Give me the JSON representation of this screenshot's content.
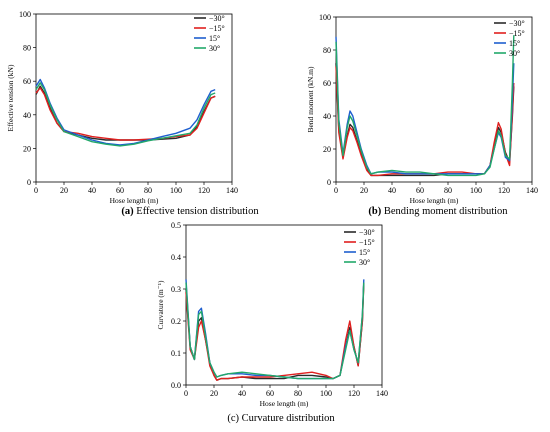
{
  "colors": {
    "neg30": "#2b2b2b",
    "neg15": "#e0201f",
    "pos15": "#1f5fcf",
    "pos30": "#22a86a"
  },
  "chart_data": [
    {
      "type": "line",
      "caption_prefix": "(a)",
      "caption_text": " Effective tension distribution",
      "xlabel": "Hose length (m)",
      "ylabel": "Effective tension (kN)",
      "xlim": [
        0,
        140
      ],
      "ylim": [
        0,
        100
      ],
      "xticks": [
        0,
        20,
        40,
        60,
        80,
        100,
        120,
        140
      ],
      "yticks": [
        0,
        20,
        40,
        60,
        80,
        100
      ],
      "legend_position": "top-right",
      "series": [
        {
          "name": "−30°",
          "color_key": "neg30",
          "x": [
            0,
            3,
            6,
            10,
            15,
            20,
            30,
            40,
            50,
            60,
            70,
            80,
            90,
            100,
            110,
            115,
            120,
            125,
            128
          ],
          "y": [
            52,
            57,
            53,
            44,
            35,
            30,
            28,
            26,
            25,
            25,
            25,
            25,
            25.5,
            26,
            28,
            33,
            42,
            50,
            51
          ]
        },
        {
          "name": "−15°",
          "color_key": "neg15",
          "x": [
            0,
            3,
            6,
            10,
            15,
            20,
            30,
            40,
            50,
            60,
            70,
            80,
            90,
            100,
            110,
            115,
            120,
            125,
            128
          ],
          "y": [
            53,
            56,
            52,
            43,
            35,
            30,
            29,
            27,
            26,
            25,
            25,
            25.5,
            26,
            27,
            28,
            32,
            41,
            50,
            51
          ]
        },
        {
          "name": "15°",
          "color_key": "pos15",
          "x": [
            0,
            3,
            6,
            10,
            15,
            20,
            30,
            40,
            50,
            60,
            70,
            80,
            90,
            100,
            110,
            115,
            120,
            125,
            128
          ],
          "y": [
            57,
            61,
            56,
            47,
            38,
            31,
            28,
            25,
            23,
            22,
            23,
            25,
            27,
            29,
            32,
            37,
            46,
            54,
            55
          ]
        },
        {
          "name": "30°",
          "color_key": "pos30",
          "x": [
            0,
            3,
            6,
            10,
            15,
            20,
            30,
            40,
            50,
            60,
            70,
            80,
            90,
            100,
            110,
            115,
            120,
            125,
            128
          ],
          "y": [
            55,
            59,
            55,
            46,
            37,
            30,
            27,
            24,
            22.5,
            21.5,
            22.5,
            24.5,
            26,
            27.5,
            29,
            34,
            44,
            52,
            53
          ]
        }
      ]
    },
    {
      "type": "line",
      "caption_prefix": "(b)",
      "caption_text": " Bending moment distribution",
      "xlabel": "Hose length (m)",
      "ylabel": "Bend moment (kN.m)",
      "xlim": [
        0,
        140
      ],
      "ylim": [
        0,
        100
      ],
      "xticks": [
        0,
        20,
        40,
        60,
        80,
        100,
        120,
        140
      ],
      "yticks": [
        0,
        20,
        40,
        60,
        80,
        100
      ],
      "legend_position": "top-right",
      "series": [
        {
          "name": "−30°",
          "color_key": "neg30",
          "x": [
            0,
            2,
            5,
            8,
            10,
            12,
            15,
            18,
            22,
            25,
            30,
            40,
            50,
            60,
            70,
            80,
            90,
            100,
            106,
            110,
            113,
            116,
            118,
            121,
            124,
            126,
            127
          ],
          "y": [
            72,
            32,
            15,
            28,
            35,
            33,
            25,
            18,
            8,
            4,
            4,
            4,
            4,
            4,
            4,
            5,
            5,
            5,
            5,
            10,
            22,
            33,
            30,
            18,
            12,
            40,
            58
          ]
        },
        {
          "name": "−15°",
          "color_key": "neg15",
          "x": [
            0,
            2,
            5,
            8,
            10,
            12,
            15,
            18,
            22,
            25,
            30,
            40,
            50,
            60,
            70,
            80,
            90,
            100,
            106,
            110,
            113,
            116,
            118,
            121,
            124,
            126,
            127
          ],
          "y": [
            70,
            30,
            14,
            27,
            33,
            31,
            24,
            16,
            7,
            4,
            4,
            5,
            5,
            5,
            5,
            6,
            6,
            5,
            5,
            10,
            24,
            36,
            32,
            17,
            10,
            42,
            60
          ]
        },
        {
          "name": "15°",
          "color_key": "pos15",
          "x": [
            0,
            2,
            5,
            8,
            10,
            12,
            15,
            18,
            22,
            25,
            30,
            40,
            50,
            60,
            70,
            80,
            90,
            100,
            106,
            110,
            113,
            116,
            118,
            121,
            124,
            126,
            127
          ],
          "y": [
            88,
            38,
            17,
            35,
            43,
            40,
            30,
            20,
            10,
            5,
            6,
            6,
            5,
            5,
            5,
            5,
            5,
            5,
            5,
            10,
            20,
            30,
            27,
            15,
            13,
            50,
            72
          ]
        },
        {
          "name": "30°",
          "color_key": "pos30",
          "x": [
            0,
            2,
            5,
            8,
            10,
            12,
            15,
            18,
            22,
            25,
            30,
            40,
            50,
            60,
            70,
            80,
            90,
            100,
            106,
            110,
            113,
            116,
            118,
            121,
            124,
            126,
            127
          ],
          "y": [
            85,
            36,
            16,
            33,
            40,
            37,
            28,
            19,
            9,
            5,
            6,
            7,
            6,
            6,
            5,
            4,
            4,
            4,
            5,
            9,
            20,
            31,
            28,
            16,
            14,
            60,
            89
          ]
        }
      ]
    },
    {
      "type": "line",
      "caption_prefix": "",
      "caption_text": "(c) Curvature distribution",
      "xlabel": "Hose length (m)",
      "ylabel": "Curvature (m⁻¹)",
      "xlim": [
        0,
        140
      ],
      "ylim": [
        0,
        0.5
      ],
      "xticks": [
        0,
        20,
        40,
        60,
        80,
        100,
        120,
        140
      ],
      "yticks": [
        0.0,
        0.1,
        0.2,
        0.3,
        0.4,
        0.5
      ],
      "legend_position": "top-right",
      "series": [
        {
          "name": "−30°",
          "color_key": "neg30",
          "x": [
            0,
            3,
            6,
            9,
            11,
            14,
            17,
            20,
            22,
            25,
            30,
            40,
            50,
            60,
            70,
            80,
            90,
            100,
            105,
            110,
            114,
            117,
            120,
            123,
            126,
            127
          ],
          "y": [
            0.3,
            0.12,
            0.08,
            0.2,
            0.21,
            0.14,
            0.07,
            0.03,
            0.015,
            0.02,
            0.02,
            0.025,
            0.02,
            0.02,
            0.02,
            0.03,
            0.03,
            0.025,
            0.02,
            0.03,
            0.12,
            0.18,
            0.12,
            0.06,
            0.2,
            0.32
          ]
        },
        {
          "name": "−15°",
          "color_key": "neg15",
          "x": [
            0,
            3,
            6,
            9,
            11,
            14,
            17,
            20,
            22,
            25,
            30,
            40,
            50,
            60,
            70,
            80,
            90,
            100,
            105,
            110,
            114,
            117,
            120,
            123,
            126,
            127
          ],
          "y": [
            0.29,
            0.11,
            0.08,
            0.18,
            0.2,
            0.14,
            0.06,
            0.03,
            0.015,
            0.02,
            0.02,
            0.025,
            0.025,
            0.025,
            0.03,
            0.035,
            0.04,
            0.03,
            0.02,
            0.03,
            0.14,
            0.2,
            0.12,
            0.06,
            0.2,
            0.32
          ]
        },
        {
          "name": "15°",
          "color_key": "pos15",
          "x": [
            0,
            3,
            6,
            9,
            11,
            14,
            17,
            20,
            22,
            25,
            30,
            40,
            50,
            60,
            70,
            80,
            90,
            100,
            105,
            110,
            114,
            117,
            120,
            123,
            126,
            127
          ],
          "y": [
            0.33,
            0.12,
            0.08,
            0.23,
            0.24,
            0.16,
            0.07,
            0.04,
            0.025,
            0.03,
            0.035,
            0.035,
            0.03,
            0.03,
            0.025,
            0.02,
            0.02,
            0.02,
            0.02,
            0.03,
            0.12,
            0.17,
            0.11,
            0.07,
            0.22,
            0.33
          ]
        },
        {
          "name": "30°",
          "color_key": "pos30",
          "x": [
            0,
            3,
            6,
            9,
            11,
            14,
            17,
            20,
            22,
            25,
            30,
            40,
            50,
            60,
            70,
            80,
            90,
            100,
            105,
            110,
            114,
            117,
            120,
            123,
            126,
            127
          ],
          "y": [
            0.32,
            0.12,
            0.08,
            0.22,
            0.23,
            0.15,
            0.07,
            0.04,
            0.025,
            0.03,
            0.035,
            0.04,
            0.035,
            0.03,
            0.025,
            0.02,
            0.02,
            0.02,
            0.02,
            0.03,
            0.11,
            0.17,
            0.11,
            0.07,
            0.22,
            0.32
          ]
        }
      ]
    }
  ]
}
